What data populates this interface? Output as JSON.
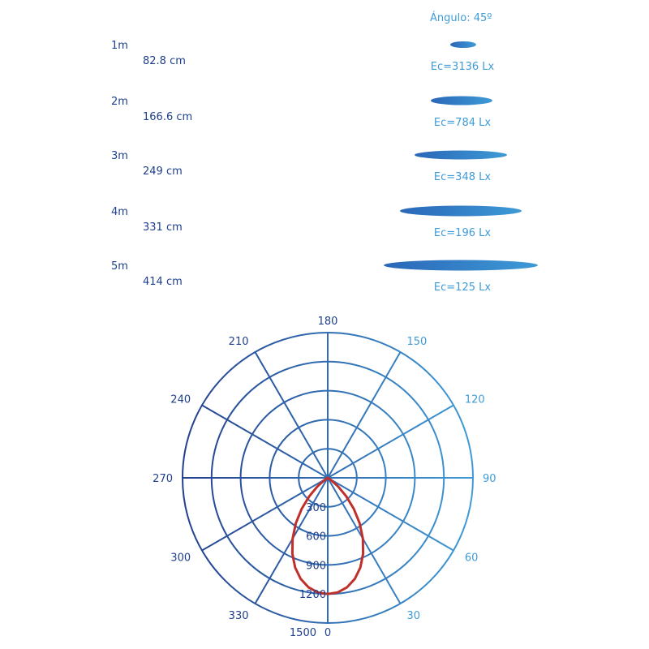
{
  "colors": {
    "dark_blue": "#233f8e",
    "light_blue": "#3f9bd6",
    "curve_red": "#c0302a"
  },
  "chart_data": [
    {
      "type": "table",
      "title": "Ángulo: 45º",
      "rows": [
        {
          "distance": "1m",
          "diameter": "82.8 cm",
          "illuminance": "Ec=3136 Lx"
        },
        {
          "distance": "2m",
          "diameter": "166.6 cm",
          "illuminance": "Ec=784 Lx"
        },
        {
          "distance": "3m",
          "diameter": "249 cm",
          "illuminance": "Ec=348 Lx"
        },
        {
          "distance": "4m",
          "diameter": "331 cm",
          "illuminance": "Ec=196 Lx"
        },
        {
          "distance": "5m",
          "diameter": "414 cm",
          "illuminance": "Ec=125 Lx"
        }
      ]
    },
    {
      "type": "polar",
      "angle_labels": [
        "180",
        "150",
        "120",
        "90",
        "60",
        "30",
        "0",
        "330",
        "300",
        "270",
        "240",
        "210"
      ],
      "radial_labels": [
        "300",
        "600",
        "900",
        "1200",
        "1500"
      ],
      "rmax": 1500,
      "curve": {
        "angles_deg": [
          0,
          5,
          10,
          15,
          20,
          25,
          30,
          35,
          40,
          45,
          50,
          55,
          60
        ],
        "values": [
          1200,
          1188,
          1148,
          1080,
          985,
          865,
          725,
          575,
          420,
          270,
          140,
          45,
          0
        ]
      }
    }
  ]
}
